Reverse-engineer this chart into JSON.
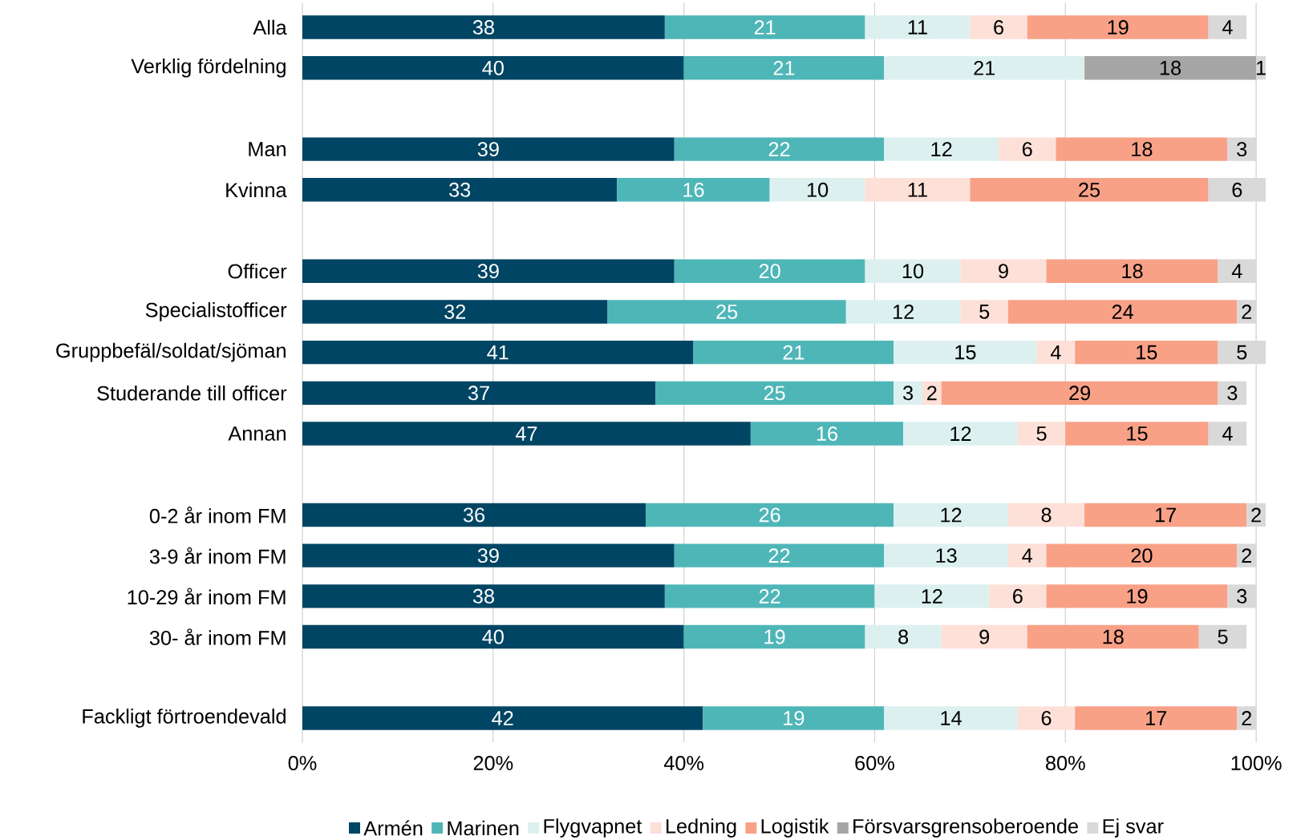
{
  "chart_data": {
    "type": "bar",
    "orientation": "horizontal",
    "stacked": true,
    "data_labels": true,
    "grid": "x",
    "legend": "bottom",
    "categories": [
      "Alla",
      "Verklig fördelning",
      null,
      "Man",
      "Kvinna",
      null,
      "Officer",
      "Specialistofficer",
      "Gruppbefäl/soldat/sjöman",
      "Studerande till officer",
      "Annan",
      null,
      "0-2 år inom FM",
      "3-9 år inom FM",
      "10-29 år inom FM",
      "30- år inom FM",
      null,
      "Fackligt förtroendevald"
    ],
    "xlim": [
      0,
      101
    ],
    "xticks": [
      {
        "value": 0,
        "label": "0%"
      },
      {
        "value": 20,
        "label": "20%"
      },
      {
        "value": 40,
        "label": "40%"
      },
      {
        "value": 60,
        "label": "60%"
      },
      {
        "value": 80,
        "label": "80%"
      },
      {
        "value": 100,
        "label": "100%"
      }
    ],
    "series": [
      {
        "name": "Armén",
        "color": "#004563",
        "values": [
          38,
          40,
          null,
          39,
          33,
          null,
          39,
          32,
          41,
          37,
          47,
          null,
          36,
          39,
          38,
          40,
          null,
          42
        ]
      },
      {
        "name": "Marinen",
        "color": "#4fb6b8",
        "values": [
          21,
          21,
          null,
          22,
          16,
          null,
          20,
          25,
          21,
          25,
          16,
          null,
          26,
          22,
          22,
          19,
          null,
          19
        ]
      },
      {
        "name": "Flygvapnet",
        "color": "#ddf0f0",
        "values": [
          11,
          21,
          null,
          12,
          10,
          null,
          10,
          12,
          15,
          3,
          12,
          null,
          12,
          13,
          12,
          8,
          null,
          14
        ]
      },
      {
        "name": "Ledning",
        "color": "#fde0d8",
        "values": [
          6,
          null,
          null,
          6,
          11,
          null,
          9,
          5,
          4,
          2,
          5,
          null,
          8,
          4,
          6,
          9,
          null,
          6
        ]
      },
      {
        "name": "Logistik",
        "color": "#f8a187",
        "values": [
          19,
          null,
          null,
          18,
          25,
          null,
          18,
          24,
          15,
          29,
          15,
          null,
          17,
          20,
          19,
          18,
          null,
          17
        ]
      },
      {
        "name": "Försvarsgrensoberoende",
        "color": "#a6a6a6",
        "values": [
          null,
          18,
          null,
          null,
          null,
          null,
          null,
          null,
          null,
          null,
          null,
          null,
          null,
          null,
          null,
          null,
          null,
          null
        ]
      },
      {
        "name": "Ej svar",
        "color": "#d9d9d9",
        "values": [
          4,
          1,
          null,
          3,
          6,
          null,
          4,
          2,
          5,
          3,
          4,
          null,
          2,
          2,
          3,
          5,
          null,
          2
        ]
      }
    ]
  }
}
